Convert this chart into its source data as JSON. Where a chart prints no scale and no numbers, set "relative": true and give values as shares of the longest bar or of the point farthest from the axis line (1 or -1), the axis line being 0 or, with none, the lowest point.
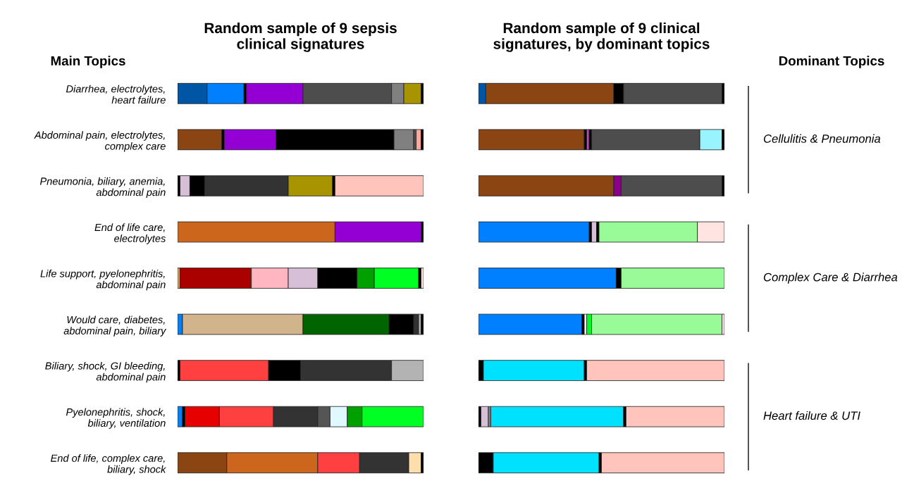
{
  "chart_data": [
    {
      "type": "bar",
      "orientation": "horizontal",
      "stacked": true,
      "relative": true,
      "tick_labels": "y",
      "legend": false,
      "title": "Random sample of 9 sepsis\nclinical signatures",
      "ylabel": "Main Topics",
      "categories": [
        "Diarrhea, electrolytes,\nheart failure",
        "Abdominal pain, electrolytes,\ncomplex care",
        "Pneumonia, biliary, anemia,\nabdominal pain",
        "End of life care,\nelectrolytes",
        "Life support, pyelonephritis,\nabdominal pain",
        "Would care, diabetes,\nabdominal pain, biliary",
        "Biliary, shock, GI bleeding,\nabdominal pain",
        "Pyelonephritis, shock,\nbiliary, ventilation",
        "End of life, complex care,\nbiliary, shock"
      ],
      "series": [
        {
          "values": [
            0.12,
            0.18,
            0.01,
            0.64,
            0.01,
            0.02,
            0.01,
            0.02,
            0.2
          ],
          "colors": [
            "#0055a5",
            "#8b4513",
            "#000000",
            "#cd661d",
            "#d2a060",
            "#0080ff",
            "#000000",
            "#0080ff",
            "#8b4513"
          ]
        },
        {
          "values": [
            0.15,
            0.01,
            0.04,
            0.35,
            0.29,
            0.49,
            0.36,
            0.01,
            0.37
          ],
          "colors": [
            "#0080ff",
            "#000000",
            "#d8bfd8",
            "#9400d3",
            "#aa0000",
            "#d2b48c",
            "#ff4040",
            "#000000",
            "#cd661d"
          ]
        },
        {
          "values": [
            0.01,
            0.21,
            0.06,
            0.01,
            0.15,
            0.35,
            0.13,
            0.14,
            0.17
          ],
          "colors": [
            "#000000",
            "#9400d3",
            "#000000",
            "#000000",
            "#ffb6c1",
            "#006400",
            "#000000",
            "#e60000",
            "#ff4040"
          ]
        },
        {
          "values": [
            0.23,
            0.48,
            0.34,
            null,
            0.12,
            0.1,
            0.37,
            0.22,
            0.2
          ],
          "colors": [
            "#9400d3",
            "#000000",
            "#333333",
            null,
            "#d8bfd8",
            "#000000",
            "#333333",
            "#ff4040",
            "#333333"
          ]
        },
        {
          "values": [
            0.36,
            0.08,
            0.18,
            null,
            0.16,
            0.02,
            0.13,
            0.18,
            0.05
          ],
          "colors": [
            "#4d4d4d",
            "#808080",
            "#a89400",
            null,
            "#000000",
            "#333333",
            "#b3b3b3",
            "#333333",
            "#ffdead"
          ]
        },
        {
          "values": [
            0.05,
            0.01,
            0.01,
            null,
            0.07,
            0.01,
            null,
            0.05,
            0.01
          ],
          "colors": [
            "#808080",
            "#4d4d4d",
            "#000000",
            null,
            "#00a000",
            "#b3b3b3",
            null,
            "#555555",
            "#000000"
          ]
        },
        {
          "values": [
            0.07,
            0.02,
            0.36,
            null,
            0.18,
            0.01,
            null,
            0.07,
            null
          ],
          "colors": [
            "#a89400",
            "#ffa89a",
            "#ffc4bb",
            null,
            "#00ff22",
            "#000000",
            null,
            "#e0f8ff",
            null
          ]
        },
        {
          "values": [
            0.01,
            0.01,
            null,
            null,
            0.01,
            null,
            null,
            0.06,
            null
          ],
          "colors": [
            "#000000",
            "#000000",
            null,
            null,
            "#000000",
            null,
            null,
            "#00a000",
            null
          ]
        },
        {
          "values": [
            null,
            null,
            null,
            null,
            0.01,
            null,
            null,
            0.25,
            null
          ],
          "colors": [
            null,
            null,
            null,
            null,
            "#ffe4e1",
            null,
            null,
            "#00ff22",
            null
          ]
        }
      ]
    },
    {
      "type": "bar",
      "orientation": "horizontal",
      "stacked": true,
      "relative": true,
      "tick_labels": false,
      "legend": false,
      "title": "Random sample of 9 clinical\nsignatures, by dominant topics",
      "y2label": "Dominant Topics",
      "categories": [
        null,
        null,
        null,
        null,
        null,
        null,
        null,
        null,
        null
      ],
      "annotations": [
        "Cellulitis & Pneumonia",
        "Complex Care & Diarrhea",
        "Heart failure & UTI"
      ],
      "series": [
        {
          "values": [
            0.03,
            0.43,
            0.55,
            0.45,
            0.56,
            0.42,
            0.02,
            0.01,
            0.06
          ],
          "colors": [
            "#0055a5",
            "#8b4513",
            "#8b4513",
            "#0080ff",
            "#0080ff",
            "#0080ff",
            "#000000",
            "#000000",
            "#000000"
          ]
        },
        {
          "values": [
            0.52,
            0.01,
            0.03,
            0.01,
            0.02,
            0.01,
            0.41,
            0.03,
            0.43
          ],
          "colors": [
            "#8b4513",
            "#000000",
            "#8b008b",
            "#000000",
            "#000000",
            "#000000",
            "#00e0ff",
            "#d8bfd8",
            "#00e0ff"
          ]
        },
        {
          "values": [
            0.04,
            0.01,
            0.41,
            0.02,
            0.42,
            0.01,
            0.01,
            0.01,
            0.01
          ],
          "colors": [
            "#000000",
            "#cc44cc",
            "#4d4d4d",
            "#d8bfd8",
            "#98fb98",
            "#ffffff",
            "#000000",
            "#808080",
            "#000000"
          ]
        },
        {
          "values": [
            0.4,
            0.01,
            0.01,
            0.01,
            null,
            0.02,
            0.56,
            0.54,
            0.5
          ],
          "colors": [
            "#4d4d4d",
            "#000000",
            "#000000",
            "#000000",
            null,
            "#00ff22",
            "#ffc4bb",
            "#00e0ff",
            "#ffc4bb"
          ]
        },
        {
          "values": [
            0.01,
            0.44,
            null,
            0.4,
            null,
            0.53,
            null,
            0.01,
            null
          ],
          "colors": [
            "#000000",
            "#4d4d4d",
            null,
            "#98fb98",
            null,
            "#98fb98",
            null,
            "#000000",
            null
          ]
        },
        {
          "values": [
            null,
            0.09,
            null,
            0.11,
            null,
            0.01,
            null,
            0.4,
            null
          ],
          "colors": [
            null,
            "#98f5ff",
            null,
            "#ffe4e1",
            null,
            "#ffe4e1",
            null,
            "#ffc4bb",
            null
          ]
        },
        {
          "values": [
            null,
            0.01,
            null,
            null,
            null,
            null,
            null,
            null,
            null
          ],
          "colors": [
            null,
            "#000000",
            null,
            null,
            null,
            null,
            null,
            null,
            null
          ]
        }
      ]
    }
  ]
}
